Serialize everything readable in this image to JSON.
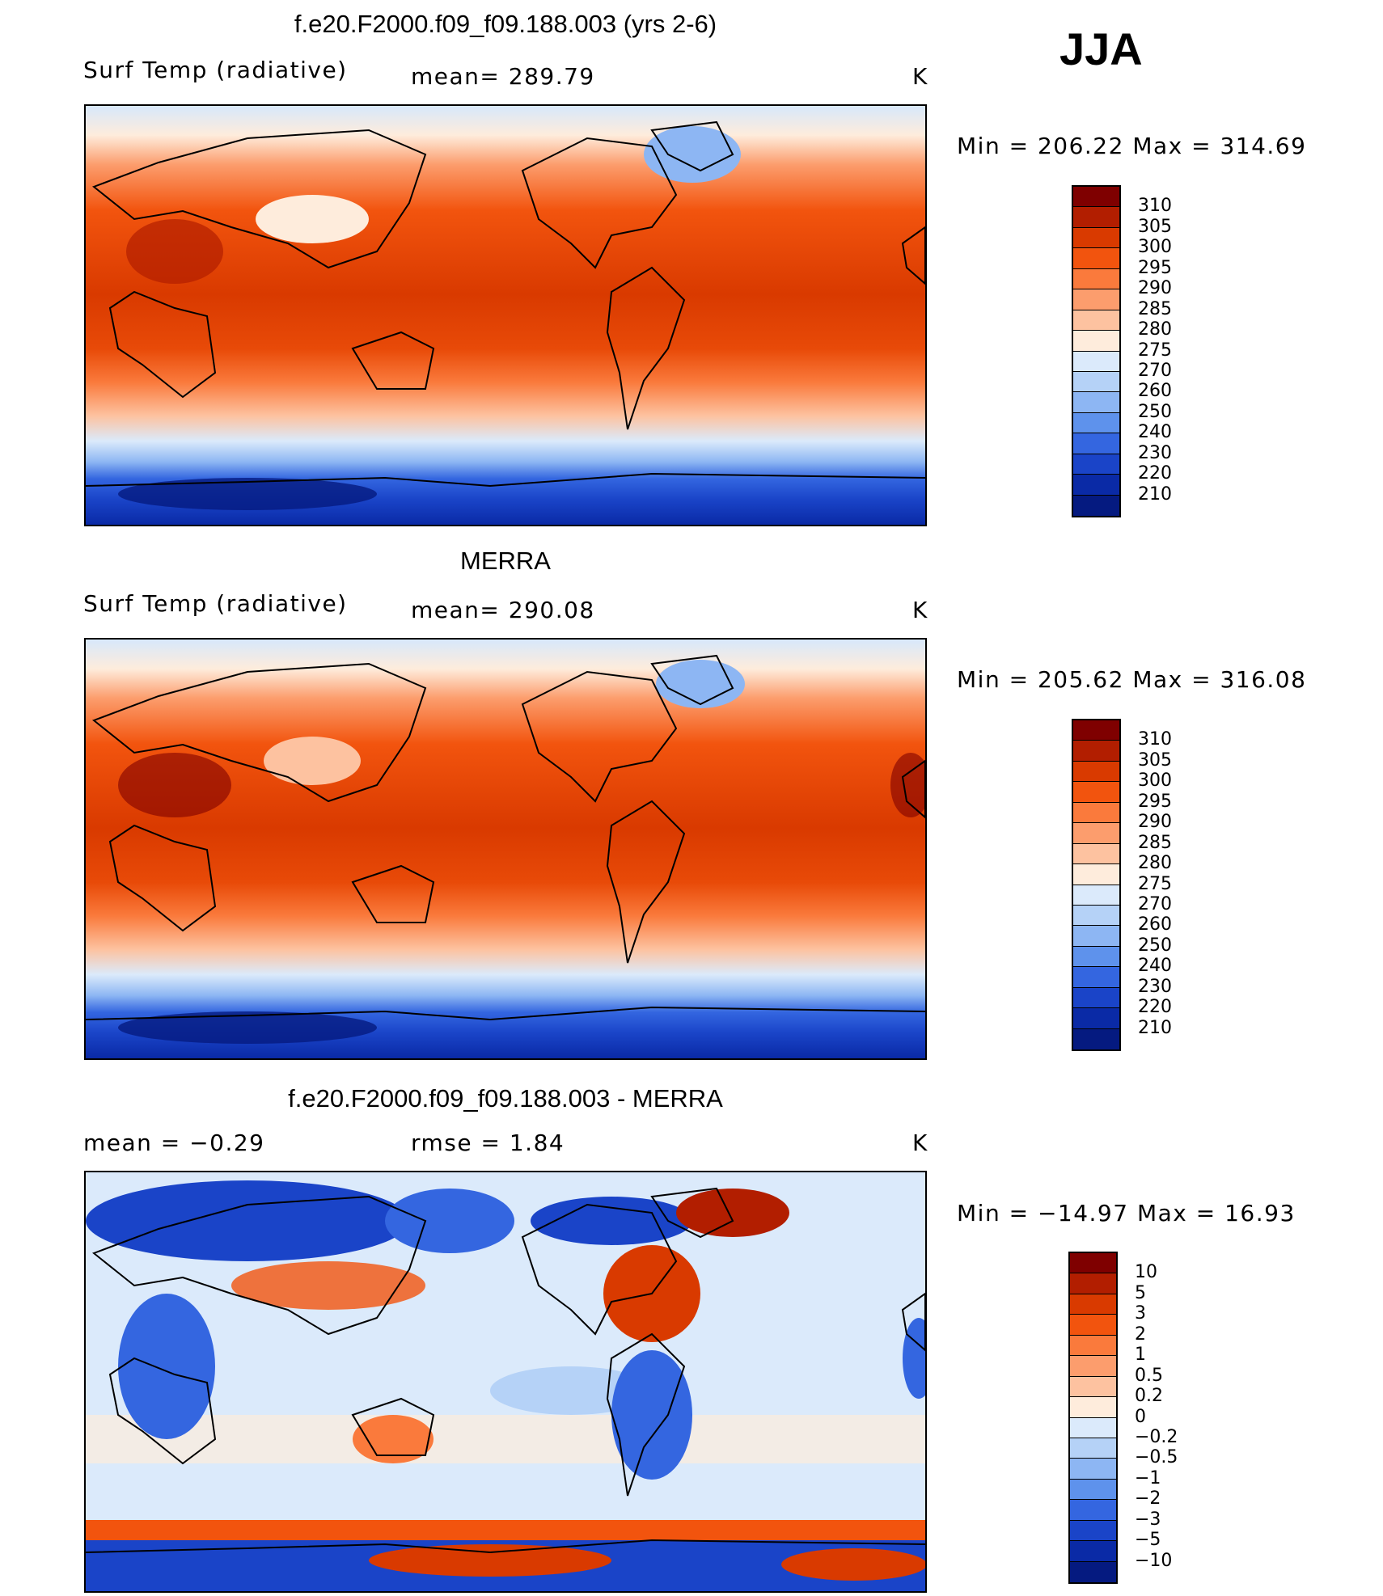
{
  "season": "JJA",
  "panels": [
    {
      "title": "f.e20.F2000.f09_f09.188.003 (yrs 2-6)",
      "variable": "Surf Temp (radiative)",
      "stat1": "mean= 289.79",
      "stat2": "",
      "units": "K",
      "minmax": "Min  =  206.22  Max  =  314.69"
    },
    {
      "title": "MERRA",
      "variable": "Surf Temp (radiative)",
      "stat1": "mean= 290.08",
      "stat2": "",
      "units": "K",
      "minmax": "Min  =  205.62  Max  =  316.08"
    },
    {
      "title": "f.e20.F2000.f09_f09.188.003 - MERRA",
      "variable": "mean =    −0.29",
      "stat1": "rmse =     1.84",
      "stat2": "",
      "units": "K",
      "minmax": "Min  =  −14.97  Max  =    16.93"
    }
  ],
  "colorbars": {
    "abs": {
      "labels": [
        "310",
        "305",
        "300",
        "295",
        "290",
        "285",
        "280",
        "275",
        "270",
        "260",
        "250",
        "240",
        "230",
        "220",
        "210"
      ],
      "colors": [
        "#7f0000",
        "#b21e00",
        "#d93a00",
        "#f2540e",
        "#fa7a3c",
        "#fc9d6d",
        "#fdc2a0",
        "#feecdc",
        "#dbeafb",
        "#b5d2f7",
        "#8db6f3",
        "#5e92ec",
        "#3466e0",
        "#1a44c8",
        "#0a2aa6",
        "#051a80"
      ]
    },
    "diff": {
      "labels": [
        "10",
        "5",
        "3",
        "2",
        "1",
        "0.5",
        "0.2",
        "0",
        "−0.2",
        "−0.5",
        "−1",
        "−2",
        "−3",
        "−5",
        "−10"
      ],
      "colors": [
        "#7f0000",
        "#b21e00",
        "#d93a00",
        "#f2540e",
        "#fa7a3c",
        "#fc9d6d",
        "#fdc2a0",
        "#feecdc",
        "#dbeafb",
        "#b5d2f7",
        "#8db6f3",
        "#5e92ec",
        "#3466e0",
        "#1a44c8",
        "#0a2aa6",
        "#051a80"
      ]
    }
  }
}
